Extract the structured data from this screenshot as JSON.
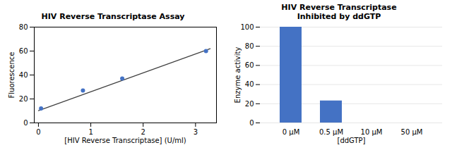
{
  "chart_data": [
    {
      "type": "scatter",
      "title": "HIV Reverse Transcriptase Assay",
      "xlabel": "[HIV Reverse Transcriptase] (U/ml)",
      "ylabel": "Fluorescence",
      "series": [
        {
          "type": "line",
          "color": "#404040",
          "x": [
            0.0,
            3.28
          ],
          "values": [
            10.2,
            62.0
          ]
        },
        {
          "type": "scatter",
          "color": "#4472C4",
          "x": [
            0.05,
            0.85,
            1.6,
            3.2
          ],
          "values": [
            12,
            27,
            37,
            60
          ]
        }
      ],
      "xlim": [
        -0.08,
        3.4
      ],
      "ylim": [
        0,
        80
      ],
      "xticks": [
        0,
        1,
        2,
        3
      ],
      "yticks": [
        0,
        20,
        40,
        60,
        80
      ],
      "grid": false
    },
    {
      "type": "bar",
      "title": "HIV Reverse Transcriptase\nInhibited by ddGTP",
      "xlabel": "[ddGTP]",
      "ylabel": "Enzyme activity",
      "categories": [
        "0 μM",
        "0.5 μM",
        "10 μM",
        "50 μM"
      ],
      "values": [
        100,
        23,
        0,
        0
      ],
      "color": "#4472C4",
      "ylim": [
        0,
        100
      ],
      "yticks": [
        0,
        20,
        40,
        60,
        80,
        100
      ],
      "grid": true
    }
  ]
}
